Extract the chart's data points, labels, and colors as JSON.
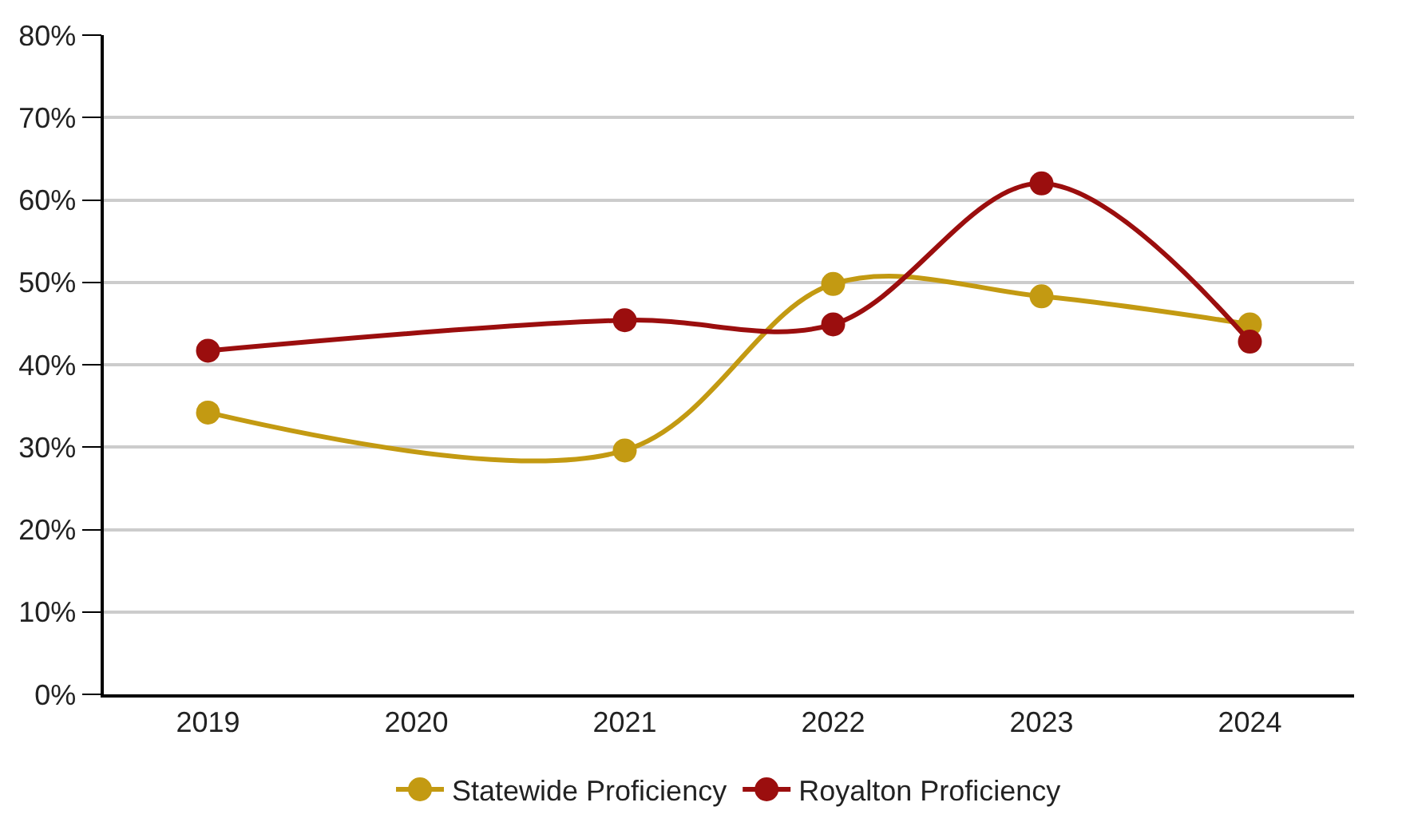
{
  "chart_data": {
    "type": "line",
    "xlim": [
      2018.5,
      2024.5
    ],
    "xticks": [
      2019,
      2020,
      2021,
      2022,
      2023,
      2024
    ],
    "ylim": [
      0,
      80
    ],
    "yticks": [
      {
        "value": 0,
        "label": "0%"
      },
      {
        "value": 10,
        "label": "10%"
      },
      {
        "value": 20,
        "label": "20%"
      },
      {
        "value": 30,
        "label": "30%"
      },
      {
        "value": 40,
        "label": "40%"
      },
      {
        "value": 50,
        "label": "50%"
      },
      {
        "value": 60,
        "label": "60%"
      },
      {
        "value": 70,
        "label": "70%"
      },
      {
        "value": 80,
        "label": "80%"
      }
    ],
    "grid": "y",
    "legend": "bottom",
    "marker": "circle",
    "line_style": "solid",
    "series": [
      {
        "name": "Statewide Proficiency",
        "color": "#c39a12",
        "x": [
          2019,
          2021,
          2022,
          2023,
          2024
        ],
        "values": [
          34.2,
          29.6,
          49.8,
          48.3,
          44.9
        ]
      },
      {
        "name": "Royalton Proficiency",
        "color": "#9b0e0e",
        "x": [
          2019,
          2021,
          2022,
          2023,
          2024
        ],
        "values": [
          41.7,
          45.4,
          44.9,
          62,
          42.8
        ]
      }
    ]
  }
}
